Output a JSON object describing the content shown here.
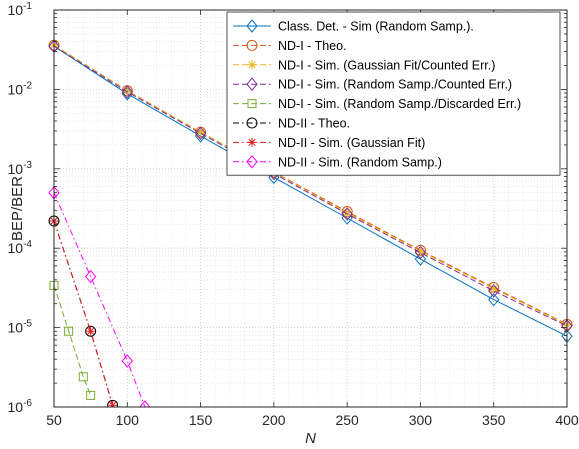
{
  "chart_data": {
    "type": "line",
    "title": "",
    "xlabel": "N",
    "ylabel": "BEP/BER",
    "xlim": [
      50,
      400
    ],
    "ylim": [
      1e-06,
      0.1
    ],
    "yscale": "log",
    "grid": true,
    "minor_grid": true,
    "legend_position": "top-right",
    "x_ticks": [
      "50",
      "100",
      "150",
      "200",
      "250",
      "300",
      "350",
      "400"
    ],
    "y_ticks": [
      {
        "base": "10",
        "exp": "-6"
      },
      {
        "base": "10",
        "exp": "-5"
      },
      {
        "base": "10",
        "exp": "-4"
      },
      {
        "base": "10",
        "exp": "-3"
      },
      {
        "base": "10",
        "exp": "-2"
      },
      {
        "base": "10",
        "exp": "-1"
      }
    ],
    "series": [
      {
        "name": "Class. Det. - Sim (Random Samp.).",
        "color": "#0072bd",
        "dash": "solid",
        "marker": "diamond",
        "x": [
          50,
          100,
          150,
          200,
          250,
          300,
          350,
          400
        ],
        "y": [
          0.035,
          0.0088,
          0.0026,
          0.00078,
          0.00024,
          7.3e-05,
          2.25e-05,
          7.8e-06
        ]
      },
      {
        "name": "ND-I - Theo.",
        "color": "#d95319",
        "dash": "dashed",
        "marker": "circle",
        "x": [
          50,
          100,
          150,
          200,
          250,
          300,
          350,
          400
        ],
        "y": [
          0.036,
          0.0096,
          0.0029,
          0.00091,
          0.00029,
          9.4e-05,
          3.2e-05,
          1.1e-05
        ]
      },
      {
        "name": "ND-I - Sim. (Gaussian Fit/Counted Err.)",
        "color": "#edb120",
        "dash": "dashed",
        "marker": "asterisk",
        "x": [
          50,
          100,
          150,
          200,
          250,
          300,
          350,
          400
        ],
        "y": [
          0.036,
          0.0095,
          0.0029,
          0.0009,
          0.00028,
          9.2e-05,
          3.1e-05,
          1.08e-05
        ]
      },
      {
        "name": "ND-I - Sim. (Random Samp./Counted Err.)",
        "color": "#7e2f8e",
        "dash": "dashed",
        "marker": "diamond",
        "x": [
          50,
          100,
          150,
          200,
          250,
          300,
          350,
          400
        ],
        "y": [
          0.035,
          0.0093,
          0.0028,
          0.00087,
          0.00027,
          8.8e-05,
          2.9e-05,
          1.05e-05
        ]
      },
      {
        "name": "ND-I - Sim. (Random Samp./Discarded Err.)",
        "color": "#77ac30",
        "dash": "dashed",
        "marker": "square",
        "x": [
          50,
          60,
          70,
          75
        ],
        "y": [
          3.4e-05,
          9e-06,
          2.4e-06,
          1.4e-06
        ]
      },
      {
        "name": "ND-II - Theo.",
        "color": "#000000",
        "dash": "dashdot",
        "marker": "circle",
        "x": [
          50,
          75,
          90
        ],
        "y": [
          0.00022,
          9e-06,
          1.05e-06
        ]
      },
      {
        "name": "ND-II - Sim. (Gaussian Fit)",
        "color": "#e41a1c",
        "dash": "dashdot",
        "marker": "asterisk",
        "x": [
          50,
          75,
          90
        ],
        "y": [
          0.00022,
          9e-06,
          1.05e-06
        ]
      },
      {
        "name": "ND-II - Sim. (Random Samp.)",
        "color": "#ff00ff",
        "dash": "dashdot",
        "marker": "diamond",
        "x": [
          50,
          75,
          100,
          112
        ],
        "y": [
          0.0005,
          4.4e-05,
          3.8e-06,
          1e-06
        ]
      }
    ]
  }
}
